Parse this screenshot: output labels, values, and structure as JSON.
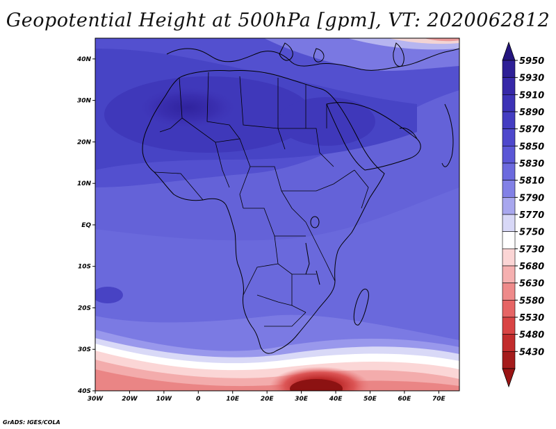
{
  "title": "Geopotential Height at 500hPa [gpm], VT: 2020062812",
  "footer": "GrADS: IGES/COLA",
  "map": {
    "lon_range": [
      -30,
      76
    ],
    "lat_range": [
      -40,
      45
    ],
    "lon_ticks": [
      {
        "value": -30,
        "label": "30W"
      },
      {
        "value": -20,
        "label": "20W"
      },
      {
        "value": -10,
        "label": "10W"
      },
      {
        "value": 0,
        "label": "0"
      },
      {
        "value": 10,
        "label": "10E"
      },
      {
        "value": 20,
        "label": "20E"
      },
      {
        "value": 30,
        "label": "30E"
      },
      {
        "value": 40,
        "label": "40E"
      },
      {
        "value": 50,
        "label": "50E"
      },
      {
        "value": 60,
        "label": "60E"
      },
      {
        "value": 70,
        "label": "70E"
      }
    ],
    "lat_ticks": [
      {
        "value": 40,
        "label": "40N"
      },
      {
        "value": 30,
        "label": "30N"
      },
      {
        "value": 20,
        "label": "20N"
      },
      {
        "value": 10,
        "label": "10N"
      },
      {
        "value": 0,
        "label": "EQ"
      },
      {
        "value": -10,
        "label": "10S"
      },
      {
        "value": -20,
        "label": "20S"
      },
      {
        "value": -30,
        "label": "30S"
      },
      {
        "value": -40,
        "label": "40S"
      }
    ],
    "features": {
      "low_center": {
        "lon": 35,
        "lat": -38,
        "value": 5430
      },
      "high_center": {
        "lon": -5,
        "lat": 27,
        "value": 5920
      }
    }
  },
  "colorbar": {
    "levels": [
      {
        "label": "5950",
        "color": "#2d1f96"
      },
      {
        "label": "5930",
        "color": "#3628a8"
      },
      {
        "label": "5910",
        "color": "#3c32b6"
      },
      {
        "label": "5890",
        "color": "#443dc2"
      },
      {
        "label": "5870",
        "color": "#4e48cc"
      },
      {
        "label": "5850",
        "color": "#5b57d6"
      },
      {
        "label": "5830",
        "color": "#6c6ade"
      },
      {
        "label": "5810",
        "color": "#8281e6"
      },
      {
        "label": "5790",
        "color": "#a8a7ee"
      },
      {
        "label": "5770",
        "color": "#d8d8f7"
      },
      {
        "label": "5750",
        "color": "#ffffff"
      },
      {
        "label": "5730",
        "color": "#fbd5d5"
      },
      {
        "label": "5680",
        "color": "#f5b0b0"
      },
      {
        "label": "5630",
        "color": "#ee8a8a"
      },
      {
        "label": "5580",
        "color": "#e66565"
      },
      {
        "label": "5530",
        "color": "#d94444"
      },
      {
        "label": "5480",
        "color": "#c22c2c"
      },
      {
        "label": "5430",
        "color": "#a51c1c"
      }
    ],
    "top_arrow_color": "#24157e",
    "bottom_arrow_color": "#9a1414"
  }
}
